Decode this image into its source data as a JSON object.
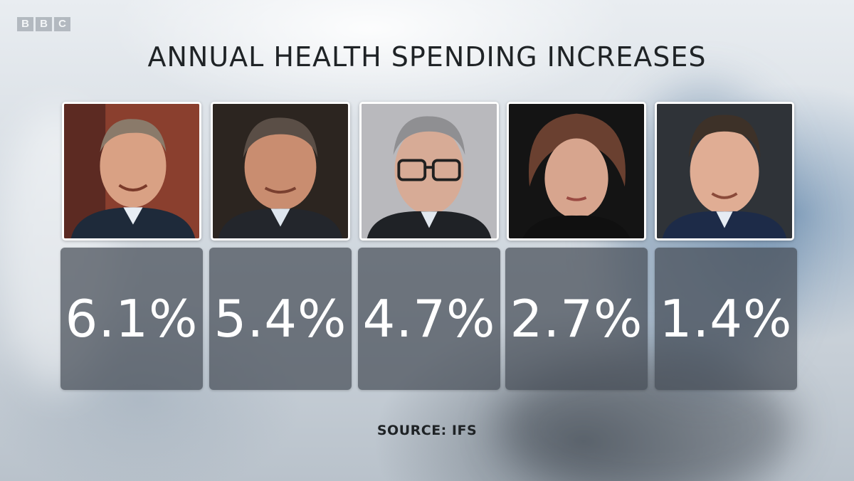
{
  "branding": {
    "logo_letters": [
      "B",
      "B",
      "C"
    ]
  },
  "title": "ANNUAL HEALTH SPENDING INCREASES",
  "columns": [
    {
      "portrait_icon": "portrait-photo-1",
      "value": "6.1%"
    },
    {
      "portrait_icon": "portrait-photo-2",
      "value": "5.4%"
    },
    {
      "portrait_icon": "portrait-photo-3",
      "value": "4.7%"
    },
    {
      "portrait_icon": "portrait-photo-4",
      "value": "2.7%"
    },
    {
      "portrait_icon": "portrait-photo-5",
      "value": "1.4%"
    }
  ],
  "source": "SOURCE: IFS",
  "colors": {
    "title_text": "#1f2326",
    "tile_background": "#464e58",
    "tile_text": "#ffffff"
  }
}
